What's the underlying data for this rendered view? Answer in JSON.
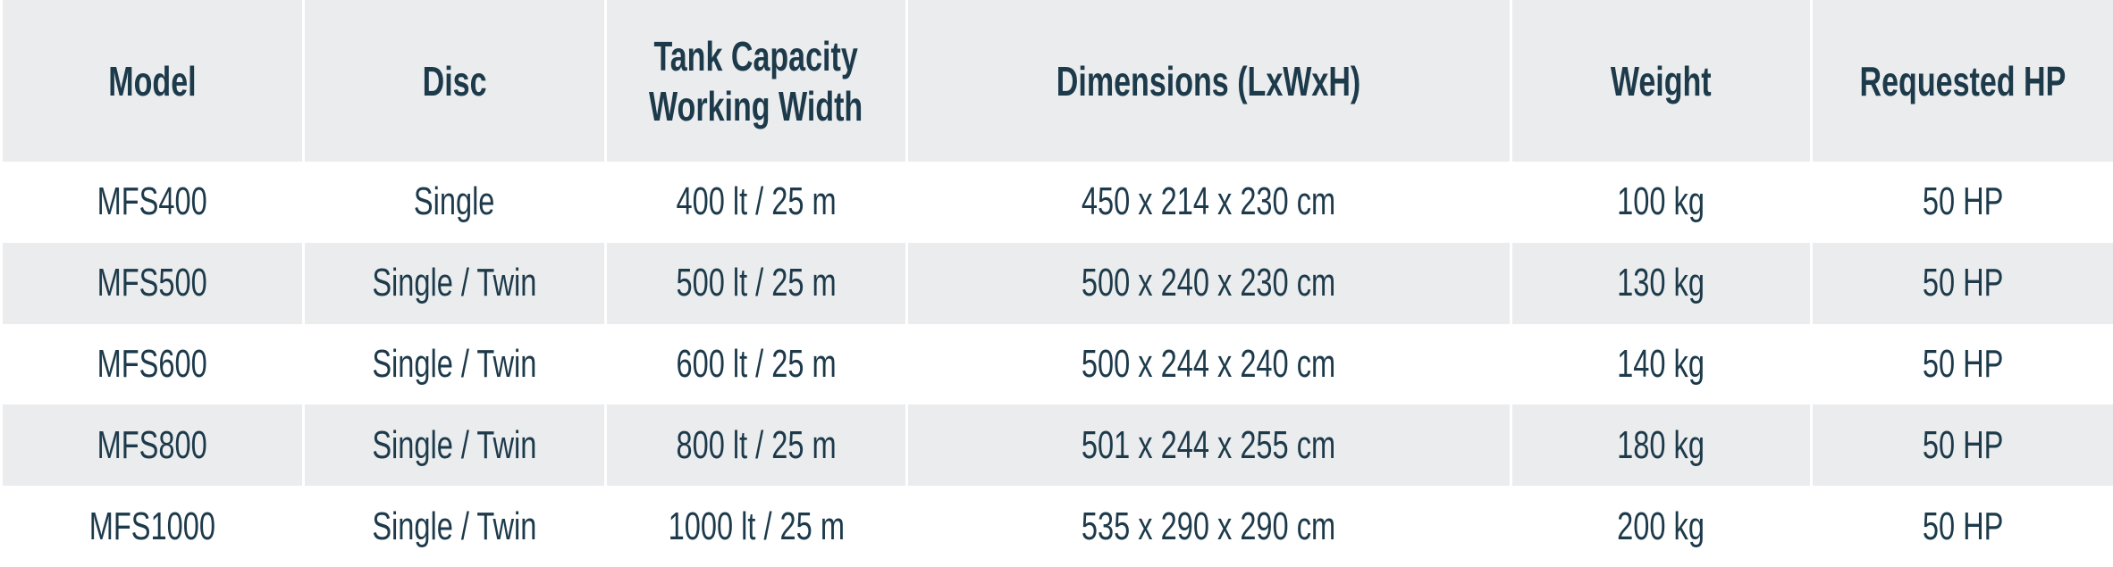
{
  "table": {
    "headers": [
      "Model",
      "Disc",
      "Tank Capacity\nWorking Width",
      "Dimensions (LxWxH)",
      "Weight",
      "Requested HP"
    ],
    "rows": [
      [
        "MFS400",
        "Single",
        "400 lt / 25 m",
        "450 x 214 x 230 cm",
        "100 kg",
        "50 HP"
      ],
      [
        "MFS500",
        "Single / Twin",
        "500 lt / 25 m",
        "500 x 240 x 230 cm",
        "130 kg",
        "50 HP"
      ],
      [
        "MFS600",
        "Single / Twin",
        "600 lt / 25 m",
        "500 x 244 x 240 cm",
        "140 kg",
        "50 HP"
      ],
      [
        "MFS800",
        "Single / Twin",
        "800 lt / 25 m",
        "501 x 244 x 255 cm",
        "180 kg",
        "50 HP"
      ],
      [
        "MFS1000",
        "Single / Twin",
        "1000 lt / 25 m",
        "535 x 290 x 290 cm",
        "200 kg",
        "50 HP"
      ]
    ]
  }
}
